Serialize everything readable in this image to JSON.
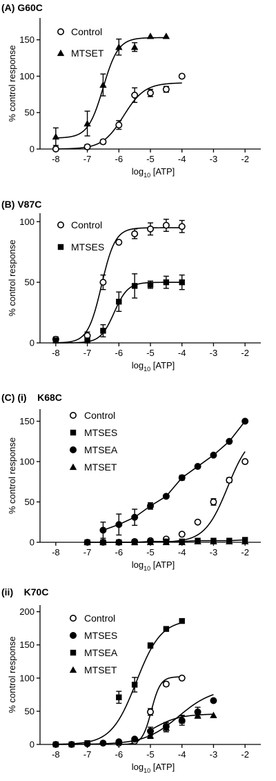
{
  "chart_data": [
    {
      "type": "scatter",
      "panel_label": "(A) G60C",
      "xlabel": "log10 [ATP]",
      "xlabel_main": "log",
      "xlabel_sub": "10",
      "xlabel_rest": " [ATP]",
      "ylabel": "% control response",
      "xlim": [
        -8.5,
        -1.5
      ],
      "ylim": [
        0,
        180
      ],
      "xticks": [
        -8,
        -7,
        -6,
        -5,
        -4,
        -3,
        -2
      ],
      "xtick_labels": [
        "-8",
        "-7",
        "-6",
        "-5",
        "-4",
        "-3",
        "-2"
      ],
      "yticks": [
        0,
        50,
        100,
        150
      ],
      "ytick_labels": [
        "0",
        "50",
        "100",
        "150"
      ],
      "grid": false,
      "legend_position": "top-left",
      "series": [
        {
          "name": "Control",
          "marker": "open-circle",
          "x": [
            -8,
            -7,
            -6.5,
            -6,
            -5.5,
            -5,
            -4.5,
            -4
          ],
          "y": [
            0,
            3,
            10,
            33,
            74,
            77,
            82,
            100
          ],
          "err": [
            3,
            3,
            3,
            6,
            10,
            5,
            4,
            0
          ],
          "fit": {
            "bottom": 0,
            "top": 91,
            "logEC50": -5.85,
            "hill": 1.3
          }
        },
        {
          "name": "MTSET",
          "marker": "filled-triangle",
          "x": [
            -8,
            -7,
            -6.5,
            -6,
            -5.5,
            -5,
            -4.5
          ],
          "y": [
            17,
            35,
            88,
            140,
            140,
            155,
            155
          ],
          "err": [
            12,
            17,
            15,
            11,
            6,
            0,
            0
          ],
          "fit": {
            "bottom": 15,
            "top": 153,
            "logEC50": -6.5,
            "hill": 1.8
          }
        }
      ]
    },
    {
      "type": "scatter",
      "panel_label": "(B) V87C",
      "xlabel": "log10 [ATP]",
      "xlabel_main": "log",
      "xlabel_sub": "10",
      "xlabel_rest": " [ATP]",
      "ylabel": "% control response",
      "xlim": [
        -8.5,
        -1.5
      ],
      "ylim": [
        0,
        107
      ],
      "xticks": [
        -8,
        -7,
        -6,
        -5,
        -4,
        -3,
        -2
      ],
      "xtick_labels": [
        "-8",
        "-7",
        "-6",
        "-5",
        "-4",
        "-3",
        "-2"
      ],
      "yticks": [
        0,
        50,
        100
      ],
      "ytick_labels": [
        "0",
        "50",
        "100"
      ],
      "grid": false,
      "legend_position": "top-left",
      "series": [
        {
          "name": "Control",
          "marker": "open-circle",
          "x": [
            -8,
            -7,
            -6.5,
            -6,
            -5.5,
            -5,
            -4.5,
            -4
          ],
          "y": [
            3,
            6,
            50,
            83,
            90,
            94,
            97,
            96
          ],
          "err": [
            2,
            3,
            6,
            0,
            4,
            5,
            5,
            5
          ],
          "fit": {
            "bottom": 0,
            "top": 95,
            "logEC50": -6.55,
            "hill": 2.0
          }
        },
        {
          "name": "MTSES",
          "marker": "filled-square",
          "x": [
            -8,
            -7,
            -6.5,
            -6,
            -5.5,
            -5,
            -4.5,
            -4
          ],
          "y": [
            2,
            2,
            10,
            34,
            47,
            48,
            50,
            50
          ],
          "err": [
            2,
            2,
            5,
            8,
            10,
            3,
            5,
            6
          ],
          "fit": {
            "bottom": 0,
            "top": 50,
            "logEC50": -6.15,
            "hill": 2.0
          }
        }
      ]
    },
    {
      "type": "scatter",
      "panel_label": "(C) (i)    K68C",
      "xlabel": "log10 [ATP]",
      "xlabel_main": "log",
      "xlabel_sub": "10",
      "xlabel_rest": " [ATP]",
      "ylabel": "% control response",
      "xlim": [
        -8.5,
        -1.5
      ],
      "ylim": [
        0,
        165
      ],
      "xticks": [
        -8,
        -7,
        -6,
        -5,
        -4,
        -3,
        -2
      ],
      "xtick_labels": [
        "-8",
        "-7",
        "-6",
        "-5",
        "-4",
        "-3",
        "-2"
      ],
      "yticks": [
        0,
        50,
        100,
        150
      ],
      "ytick_labels": [
        "0",
        "50",
        "100",
        "150"
      ],
      "grid": false,
      "legend_position": "top-left",
      "series": [
        {
          "name": "Control",
          "marker": "open-circle",
          "x": [
            -7,
            -6.5,
            -6,
            -5.5,
            -5,
            -4.5,
            -4,
            -3.5,
            -3,
            -2.5,
            -2
          ],
          "y": [
            0,
            0,
            0,
            1,
            2,
            4,
            10,
            25,
            50,
            77,
            100
          ],
          "err": [
            0,
            0,
            0,
            0,
            0,
            0,
            2,
            2,
            4,
            3,
            0
          ],
          "fit": {
            "bottom": 0,
            "top": 137,
            "logEC50": -2.55,
            "hill": 1.2
          }
        },
        {
          "name": "MTSES",
          "marker": "filled-square",
          "x": [
            -7,
            -6.5,
            -6,
            -5.5,
            -5,
            -4.5,
            -4,
            -3.5,
            -3,
            -2.5,
            -2
          ],
          "y": [
            0,
            0,
            0,
            0,
            1,
            1,
            1,
            2,
            2,
            2,
            3
          ],
          "err": [
            0,
            0,
            0,
            0,
            0,
            0,
            0,
            0,
            0,
            0,
            0
          ],
          "line": "linear"
        },
        {
          "name": "MTSEA",
          "marker": "filled-circle",
          "x": [
            -6.5,
            -6,
            -5.5,
            -5,
            -4.5,
            -4,
            -3.5,
            -3,
            -2.5,
            -2
          ],
          "y": [
            15,
            22,
            31,
            45,
            57,
            80,
            94,
            108,
            125,
            150
          ],
          "err": [
            10,
            13,
            10,
            4,
            2,
            3,
            0,
            0,
            0,
            0
          ],
          "line": "linear"
        },
        {
          "name": "MTSET",
          "marker": "filled-triangle",
          "x": [
            -7,
            -6.5,
            -6,
            -5.5,
            -5,
            -4.5,
            -4,
            -3.5,
            -3,
            -2.5,
            -2
          ],
          "y": [
            0,
            0,
            0,
            0,
            0,
            0,
            0,
            1,
            1,
            1,
            1
          ],
          "err": [
            0,
            0,
            0,
            0,
            0,
            0,
            0,
            0,
            0,
            0,
            0
          ],
          "line": "none"
        }
      ]
    },
    {
      "type": "scatter",
      "panel_label": "(ii)    K70C",
      "xlabel": "log10 [ATP]",
      "xlabel_main": "log",
      "xlabel_sub": "10",
      "xlabel_rest": " [ATP]",
      "ylabel": "% control response",
      "xlim": [
        -8.5,
        -1.5
      ],
      "ylim": [
        0,
        210
      ],
      "xticks": [
        -8,
        -7,
        -6,
        -5,
        -4,
        -3,
        -2
      ],
      "xtick_labels": [
        "-8",
        "-7",
        "-6",
        "-5",
        "-4",
        "-3",
        "-2"
      ],
      "yticks": [
        0,
        50,
        100,
        150,
        200
      ],
      "ytick_labels": [
        "0",
        "50",
        "100",
        "150",
        "200"
      ],
      "grid": false,
      "legend_position": "top-left",
      "series": [
        {
          "name": "Control",
          "marker": "open-circle",
          "x": [
            -6,
            -5.5,
            -5,
            -4.5,
            -4
          ],
          "y": [
            2,
            5,
            49,
            91,
            100
          ],
          "err": [
            0,
            0,
            5,
            3,
            0
          ],
          "fit": {
            "bottom": 0,
            "top": 102,
            "logEC50": -4.97,
            "hill": 3.0
          }
        },
        {
          "name": "MTSES",
          "marker": "filled-circle",
          "x": [
            -8,
            -7.5,
            -7,
            -6.5,
            -6,
            -5.5,
            -5,
            -4.5,
            -4,
            -3.5,
            -3
          ],
          "y": [
            0,
            0,
            1,
            2,
            4,
            8,
            20,
            27,
            36,
            49,
            66
          ],
          "err": [
            0,
            0,
            0,
            0,
            0,
            0,
            6,
            6,
            7,
            7,
            0
          ],
          "fit": {
            "bottom": 0,
            "top": 85,
            "logEC50": -4.1,
            "hill": 0.8
          }
        },
        {
          "name": "MTSEA",
          "marker": "filled-square",
          "x": [
            -8,
            -7.5,
            -7,
            -6,
            -5.5,
            -5,
            -4.5,
            -4
          ],
          "y": [
            0,
            0,
            2,
            71,
            90,
            149,
            174,
            186
          ],
          "err": [
            0,
            0,
            0,
            9,
            11,
            4,
            0,
            0
          ],
          "fit": {
            "bottom": 0,
            "top": 188,
            "logEC50": -5.45,
            "hill": 1.1
          }
        },
        {
          "name": "MTSET",
          "marker": "filled-triangle",
          "x": [
            -5,
            -4.5,
            -4,
            -3.5,
            -3
          ],
          "y": [
            13,
            25,
            38,
            43,
            44
          ],
          "err": [
            4,
            6,
            6,
            0,
            0
          ],
          "fit": {
            "bottom": 0,
            "top": 46,
            "logEC50": -4.95,
            "hill": 1.0
          }
        }
      ]
    }
  ]
}
